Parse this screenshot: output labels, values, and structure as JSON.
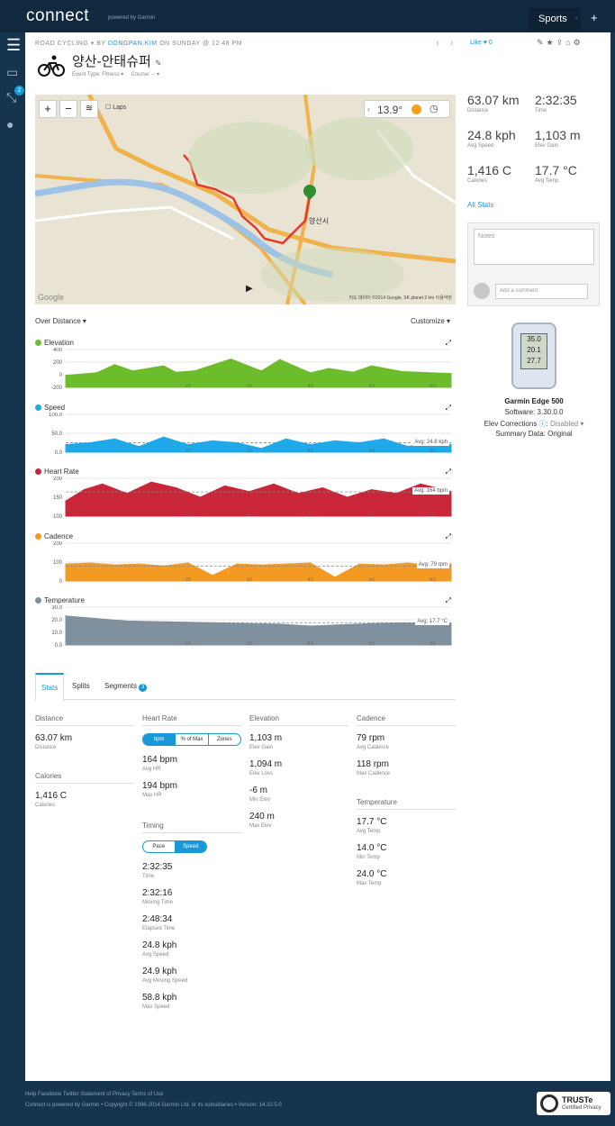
{
  "header": {
    "logo": "connect",
    "logo_sub": "powered by Garmin",
    "sports": "Sports",
    "sports_caret": ".",
    "plus": "+"
  },
  "nav": {
    "badge": "2"
  },
  "activity": {
    "type": "ROAD CYCLING",
    "by": "BY",
    "user": "DONGPAN.KIM",
    "when": "ON SUNDAY @ 12:48 PM",
    "title": "양산-안태슈퍼",
    "event_type": "Event Type: Fitness ▾",
    "course": "Course: -- ▾",
    "like": "Like",
    "like_count": "0"
  },
  "map": {
    "laps_label": "Laps",
    "temp": "13.9°",
    "place": "양산시",
    "attribution": "지도 데이터 ©2014 Google, SK planet  2 km  이용약관",
    "google": "Google"
  },
  "charts_header": {
    "over_distance": "Over Distance",
    "customize": "Customize"
  },
  "chart_data": [
    {
      "type": "area",
      "title": "Elevation",
      "color": "#6cbc2b",
      "yticks": [
        "400",
        "200",
        "0",
        "-200"
      ],
      "ylim": [
        -200,
        400
      ],
      "xticks": [
        "20",
        "30",
        "40",
        "50",
        "60"
      ],
      "x": [
        0,
        5,
        8,
        11,
        16,
        18,
        21,
        27,
        32,
        35,
        40,
        43,
        47,
        50,
        55,
        60,
        63
      ],
      "values": [
        -10,
        30,
        160,
        60,
        140,
        40,
        60,
        250,
        60,
        240,
        30,
        100,
        40,
        140,
        50,
        30,
        20
      ]
    },
    {
      "type": "area",
      "title": "Speed",
      "color": "#1ea9e8",
      "yticks": [
        "100.0",
        "50.0",
        "0.0"
      ],
      "ylim": [
        0,
        100
      ],
      "xticks": [
        "20",
        "30",
        "40",
        "50",
        "60"
      ],
      "x": [
        0,
        4,
        8,
        12,
        16,
        20,
        24,
        28,
        32,
        36,
        40,
        44,
        48,
        52,
        56,
        60,
        63
      ],
      "values": [
        20,
        25,
        35,
        15,
        40,
        20,
        30,
        25,
        10,
        35,
        20,
        30,
        25,
        35,
        15,
        30,
        20
      ],
      "avg": 24.8,
      "avg_label": "Avg: 24.8 kph"
    },
    {
      "type": "area",
      "title": "Heart Rate",
      "color": "#c9263a",
      "yticks": [
        "200",
        "150",
        "100"
      ],
      "ylim": [
        100,
        200
      ],
      "xticks": [
        "20",
        "30",
        "40",
        "50",
        "60"
      ],
      "x": [
        0,
        3,
        6,
        10,
        14,
        18,
        22,
        26,
        30,
        34,
        38,
        42,
        46,
        50,
        54,
        58,
        63
      ],
      "values": [
        140,
        170,
        185,
        160,
        190,
        175,
        150,
        180,
        165,
        185,
        160,
        175,
        150,
        170,
        160,
        185,
        165
      ],
      "avg": 164,
      "avg_label": "Avg: 164 bpm"
    },
    {
      "type": "area",
      "title": "Cadence",
      "color": "#f39a25",
      "yticks": [
        "200",
        "100",
        "0"
      ],
      "ylim": [
        0,
        200
      ],
      "xticks": [
        "20",
        "30",
        "40",
        "50",
        "60"
      ],
      "x": [
        0,
        4,
        8,
        12,
        16,
        20,
        24,
        28,
        32,
        36,
        40,
        44,
        48,
        52,
        56,
        60,
        63
      ],
      "values": [
        90,
        95,
        85,
        90,
        80,
        95,
        30,
        90,
        85,
        90,
        95,
        20,
        90,
        85,
        95,
        80,
        90
      ],
      "avg": 79,
      "avg_label": "Avg: 79 rpm"
    },
    {
      "type": "area",
      "title": "Temperature",
      "color": "#7f909e",
      "yticks": [
        "30.0",
        "20.0",
        "10.0",
        "0.0"
      ],
      "ylim": [
        0,
        30
      ],
      "xticks": [
        "20",
        "30",
        "40",
        "50",
        "60"
      ],
      "x": [
        0,
        5,
        10,
        15,
        20,
        25,
        30,
        35,
        40,
        45,
        50,
        55,
        60,
        63
      ],
      "values": [
        23,
        21,
        19,
        18.5,
        18,
        17.5,
        17,
        16.5,
        15,
        16,
        17,
        17.5,
        17,
        17
      ],
      "avg": 17.7,
      "avg_label": "Avg: 17.7 °C"
    }
  ],
  "tabs": [
    "Stats",
    "Splits",
    "Segments"
  ],
  "segments_badge": "3",
  "stats": {
    "distance": {
      "header": "Distance",
      "value": "63.07 km",
      "label": "Distance"
    },
    "calories": {
      "header": "Calories",
      "value": "1,416 C",
      "label": "Calories"
    },
    "heart_rate": {
      "header": "Heart Rate",
      "toggle": [
        "bpm",
        "% of Max",
        "Zones"
      ],
      "avg": "164 bpm",
      "avg_label": "Avg HR",
      "max": "194 bpm",
      "max_label": "Max HR"
    },
    "timing": {
      "header": "Timing",
      "toggle": [
        "Pace",
        "Speed"
      ],
      "time": "2:32:35",
      "time_label": "Time",
      "moving": "2:32:16",
      "moving_label": "Moving Time",
      "elapsed": "2:48:34",
      "elapsed_label": "Elapsed Time",
      "avg_speed": "24.8 kph",
      "avg_speed_label": "Avg Speed",
      "avg_moving_speed": "24.9 kph",
      "avg_moving_speed_label": "Avg Moving Speed",
      "max_speed": "58.8 kph",
      "max_speed_label": "Max Speed"
    },
    "elevation": {
      "header": "Elevation",
      "gain": "1,103 m",
      "gain_label": "Elev Gain",
      "loss": "1,094 m",
      "loss_label": "Elev Loss",
      "min": "-6 m",
      "min_label": "Min Elev",
      "max": "240 m",
      "max_label": "Max Elev"
    },
    "cadence": {
      "header": "Cadence",
      "avg": "79 rpm",
      "avg_label": "Avg Cadence",
      "max": "118 rpm",
      "max_label": "Max Cadence"
    },
    "temperature": {
      "header": "Temperature",
      "avg": "17.7 °C",
      "avg_label": "Avg Temp",
      "min": "14.0 °C",
      "min_label": "Min Temp",
      "max": "24.0 °C",
      "max_label": "Max Temp"
    }
  },
  "summary": {
    "distance": "63.07 km",
    "distance_label": "Distance",
    "time": "2:32:35",
    "time_label": "Time",
    "speed": "24.8 kph",
    "speed_label": "Avg Speed",
    "elev": "1,103 m",
    "elev_label": "Elev Gain",
    "calories": "1,416 C",
    "calories_label": "Calories",
    "temp": "17.7 °C",
    "temp_label": "Avg Temp",
    "all_stats": "All Stats"
  },
  "notes": {
    "placeholder": "Notes",
    "comment_placeholder": "Add a comment."
  },
  "device": {
    "screen_top": "35.0",
    "screen_mid": "20.1",
    "screen_bot": "27.7",
    "name": "Garmin Edge 500",
    "software": "Software: 3.30.0.0",
    "elev_corrections": "Elev Corrections",
    "elev_state": "Disabled ▾",
    "summary_data": "Summary Data: Original"
  },
  "footer": {
    "links": "Help Facebook Twitter Statement of Privacy Terms of Use",
    "copyright": "Connect is powered by Garmin • Copyright © 1996-2014 Garmin Ltd. or its subsidiaries • Version: 14.10.5.0"
  },
  "truste": {
    "title": "TRUSTe",
    "sub": "Certified Privacy"
  }
}
